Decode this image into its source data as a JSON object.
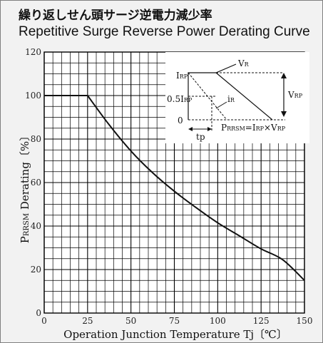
{
  "title_jp": "繰り返しせん頭サージ逆電力減少率",
  "title_en": "Repetitive Surge Reverse Power Derating Curve",
  "chart_data": {
    "type": "line",
    "title": "Repetitive Surge Reverse Power Derating Curve",
    "xlabel": "Operation Junction Temperature Tj〔℃〕",
    "ylabel": "PRRSM Derating〔%〕",
    "ylabel_main": "P",
    "ylabel_sub": "RRSM",
    "ylabel_rest": " Derating〔%〕",
    "xlim": [
      0,
      150
    ],
    "ylim": [
      0,
      120
    ],
    "x_ticks": [
      0,
      25,
      50,
      75,
      100,
      125,
      150
    ],
    "y_ticks": [
      0,
      20,
      40,
      60,
      80,
      100,
      120
    ],
    "x_tick_labels": [
      "0",
      "25",
      "50",
      "75",
      "100",
      "125",
      "150"
    ],
    "y_tick_labels": [
      "0",
      "20",
      "40",
      "60",
      "80",
      "100",
      "120"
    ],
    "grid": true,
    "series": [
      {
        "x": [
          0,
          25,
          37.5,
          50,
          62.5,
          75,
          87.5,
          100,
          112.5,
          125,
          137.5,
          150
        ],
        "values": [
          100,
          100,
          86.5,
          74.5,
          64.5,
          56,
          48.5,
          41.5,
          35.5,
          29.5,
          24.5,
          15
        ]
      }
    ]
  },
  "inset": {
    "label_irp": "I",
    "label_irp_sub": "RP",
    "label_half_irp": "0.5I",
    "label_half_irp_sub": "RP",
    "label_zero": "0",
    "label_vr": "V",
    "label_vr_sub": "R",
    "label_ir": "i",
    "label_ir_sub": "R",
    "label_vrp": "V",
    "label_vrp_sub": "RP",
    "label_tp": "tp",
    "formula_p": "P",
    "formula_p_sub": "RRSM",
    "formula_eq": "=I",
    "formula_irp_sub": "RP",
    "formula_times": "×V",
    "formula_vrp_sub": "RP"
  },
  "colors": {
    "background": "#f2f2f2",
    "line": "#111111",
    "grid": "#000000"
  }
}
